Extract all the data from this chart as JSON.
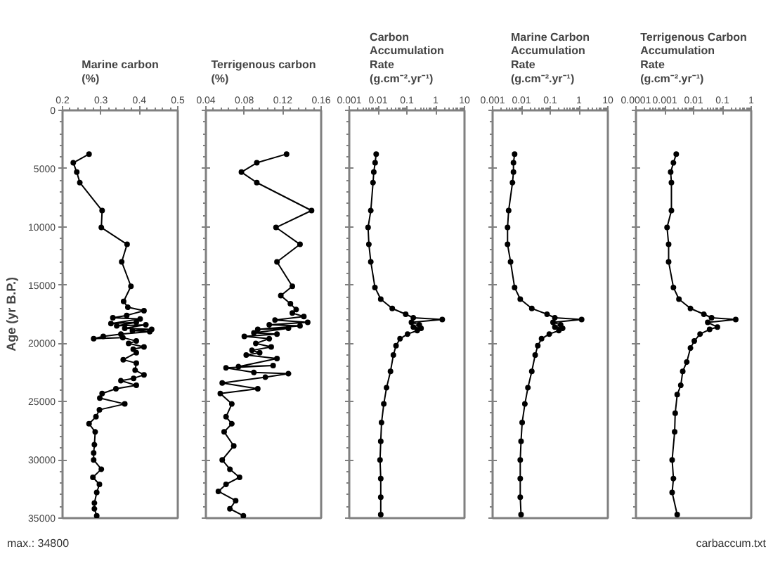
{
  "chart_data": [
    {
      "type": "line",
      "title": "Marine carbon\n(%)",
      "ylabel": "Age (yr B.P.)",
      "orientation": "horizontal",
      "marker": "circle",
      "grid": false,
      "xlim": [
        0.2,
        0.5
      ],
      "xticks": [
        0.2,
        0.3,
        0.4,
        0.5
      ],
      "ylim": [
        35000,
        0
      ],
      "yticks": [
        0,
        5000,
        10000,
        15000,
        20000,
        25000,
        30000,
        35000
      ],
      "annotations": [
        "max.: 34800"
      ],
      "series": [
        {
          "color": "#000000",
          "x": [
            3750,
            4500,
            5300,
            6200,
            8600,
            10050,
            11500,
            13000,
            15100,
            16400,
            16900,
            17200,
            17600,
            17800,
            17900,
            18300,
            18200,
            18500,
            18400,
            18700,
            18800,
            18900,
            19000,
            19200,
            19400,
            19600,
            19500,
            19800,
            20000,
            20300,
            20500,
            20800,
            21400,
            21700,
            22300,
            22700,
            23000,
            23200,
            23600,
            23900,
            24300,
            24700,
            25200,
            25700,
            26300,
            26900,
            27600,
            28700,
            29400,
            30000,
            30800,
            31500,
            32100,
            32800,
            33700,
            34200,
            34800
          ],
          "values": [
            0.269,
            0.228,
            0.237,
            0.245,
            0.303,
            0.301,
            0.368,
            0.354,
            0.378,
            0.359,
            0.37,
            0.412,
            0.367,
            0.331,
            0.402,
            0.326,
            0.392,
            0.341,
            0.417,
            0.362,
            0.432,
            0.382,
            0.427,
            0.352,
            0.306,
            0.281,
            0.357,
            0.392,
            0.372,
            0.412,
            0.384,
            0.392,
            0.358,
            0.392,
            0.389,
            0.412,
            0.385,
            0.352,
            0.392,
            0.339,
            0.303,
            0.297,
            0.362,
            0.296,
            0.287,
            0.269,
            0.285,
            0.283,
            0.281,
            0.281,
            0.301,
            0.279,
            0.296,
            0.289,
            0.283,
            0.283,
            0.289
          ]
        }
      ]
    },
    {
      "type": "line",
      "title": "Terrigenous carbon\n(%)",
      "orientation": "horizontal",
      "marker": "circle",
      "grid": false,
      "tick_labels": "x",
      "xlim": [
        0.04,
        0.16
      ],
      "xticks": [
        0.04,
        0.08,
        0.12,
        0.16
      ],
      "ylim": [
        35000,
        0
      ],
      "yticks": [
        0,
        5000,
        10000,
        15000,
        20000,
        25000,
        30000,
        35000
      ],
      "series": [
        {
          "color": "#000000",
          "x": [
            3750,
            4500,
            5300,
            6200,
            8600,
            10050,
            11500,
            13000,
            15100,
            15900,
            16600,
            17100,
            17400,
            17700,
            18000,
            18200,
            18400,
            18500,
            18800,
            18700,
            19100,
            19200,
            19400,
            19600,
            20000,
            20300,
            20600,
            20800,
            21000,
            21300,
            22000,
            21900,
            22100,
            22500,
            22600,
            22900,
            23400,
            23900,
            24300,
            25200,
            26300,
            26900,
            27600,
            28800,
            30000,
            30800,
            31500,
            32100,
            32700,
            33500,
            34200,
            34800
          ],
          "values": [
            0.124,
            0.093,
            0.077,
            0.093,
            0.15,
            0.113,
            0.138,
            0.114,
            0.13,
            0.118,
            0.128,
            0.134,
            0.13,
            0.142,
            0.112,
            0.146,
            0.106,
            0.138,
            0.094,
            0.126,
            0.09,
            0.114,
            0.08,
            0.106,
            0.092,
            0.108,
            0.088,
            0.096,
            0.082,
            0.114,
            0.074,
            0.11,
            0.061,
            0.09,
            0.126,
            0.102,
            0.057,
            0.094,
            0.055,
            0.067,
            0.061,
            0.067,
            0.059,
            0.069,
            0.057,
            0.065,
            0.075,
            0.061,
            0.053,
            0.071,
            0.065,
            0.079
          ]
        }
      ]
    },
    {
      "type": "line",
      "title": "Carbon\nAccumulation\nRate\n(g.cm⁻².yr⁻¹)",
      "orientation": "horizontal",
      "marker": "circle",
      "grid": false,
      "log": "x",
      "tick_labels": "x",
      "xlim": [
        0.001,
        10
      ],
      "xticks": [
        0.001,
        0.01,
        0.1,
        1,
        10
      ],
      "ylim": [
        35000,
        0
      ],
      "yticks": [
        0,
        5000,
        10000,
        15000,
        20000,
        25000,
        30000,
        35000
      ],
      "series": [
        {
          "color": "#000000",
          "x": [
            3750,
            4500,
            5300,
            6200,
            8600,
            10050,
            11500,
            13000,
            15200,
            16200,
            17000,
            17500,
            17800,
            17950,
            18200,
            18400,
            18600,
            18700,
            18900,
            19200,
            19600,
            20200,
            21000,
            22400,
            23800,
            25200,
            26800,
            28400,
            30000,
            31600,
            33200,
            34700
          ],
          "values": [
            0.0086,
            0.0079,
            0.0071,
            0.0067,
            0.0056,
            0.0045,
            0.0048,
            0.0056,
            0.0078,
            0.0124,
            0.031,
            0.091,
            0.168,
            1.69,
            0.144,
            0.27,
            0.168,
            0.31,
            0.23,
            0.106,
            0.058,
            0.042,
            0.034,
            0.027,
            0.0197,
            0.0158,
            0.0132,
            0.0124,
            0.0117,
            0.0124,
            0.0124,
            0.0124
          ]
        }
      ]
    },
    {
      "type": "line",
      "title": "Marine Carbon\nAccumulation\nRate\n(g.cm⁻².yr⁻¹)",
      "orientation": "horizontal",
      "marker": "circle",
      "grid": false,
      "log": "x",
      "tick_labels": "x",
      "xlim": [
        0.001,
        10
      ],
      "xticks": [
        0.001,
        0.01,
        0.1,
        1,
        10
      ],
      "ylim": [
        35000,
        0
      ],
      "yticks": [
        0,
        5000,
        10000,
        15000,
        20000,
        25000,
        30000,
        35000
      ],
      "series": [
        {
          "color": "#000000",
          "x": [
            3750,
            4500,
            5300,
            6200,
            8600,
            10050,
            11500,
            13000,
            15200,
            16200,
            17000,
            17500,
            17800,
            17950,
            18200,
            18400,
            18600,
            18700,
            18900,
            19200,
            19600,
            20200,
            21000,
            22400,
            23800,
            25200,
            26800,
            28400,
            30000,
            31600,
            33200,
            34700
          ],
          "values": [
            0.0058,
            0.0053,
            0.0053,
            0.0049,
            0.0036,
            0.0033,
            0.0033,
            0.0042,
            0.0058,
            0.0091,
            0.0229,
            0.078,
            0.145,
            1.23,
            0.125,
            0.23,
            0.145,
            0.27,
            0.2,
            0.093,
            0.05,
            0.037,
            0.03,
            0.0229,
            0.0168,
            0.0132,
            0.0106,
            0.0097,
            0.0091,
            0.0091,
            0.0091,
            0.0097
          ]
        }
      ]
    },
    {
      "type": "line",
      "title": "Terrigenous Carbon\nAccumulation\nRate\n(g.cm⁻².yr⁻¹)",
      "orientation": "horizontal",
      "marker": "circle",
      "grid": false,
      "log": "x",
      "tick_labels": "x",
      "xlim": [
        0.0001,
        1
      ],
      "xticks": [
        0.0001,
        0.001,
        0.01,
        0.1,
        1
      ],
      "ylim": [
        35000,
        0
      ],
      "yticks": [
        0,
        5000,
        10000,
        15000,
        20000,
        25000,
        30000,
        35000
      ],
      "annotations": [
        "carbaccum.txt"
      ],
      "series": [
        {
          "color": "#000000",
          "x": [
            3750,
            4500,
            5300,
            6200,
            8600,
            10050,
            11500,
            13000,
            15200,
            16200,
            17000,
            17500,
            17800,
            17950,
            18200,
            18600,
            18800,
            19200,
            19800,
            20400,
            21600,
            22400,
            23600,
            24400,
            26000,
            27600,
            30000,
            31600,
            32800,
            34700
          ],
          "values": [
            0.0025,
            0.002,
            0.0016,
            0.0017,
            0.0017,
            0.0012,
            0.00136,
            0.00136,
            0.002,
            0.0031,
            0.0078,
            0.0228,
            0.042,
            0.29,
            0.031,
            0.067,
            0.036,
            0.0168,
            0.0106,
            0.0078,
            0.0058,
            0.0042,
            0.0036,
            0.0027,
            0.0023,
            0.0022,
            0.0018,
            0.002,
            0.0018,
            0.0027
          ]
        }
      ]
    }
  ]
}
